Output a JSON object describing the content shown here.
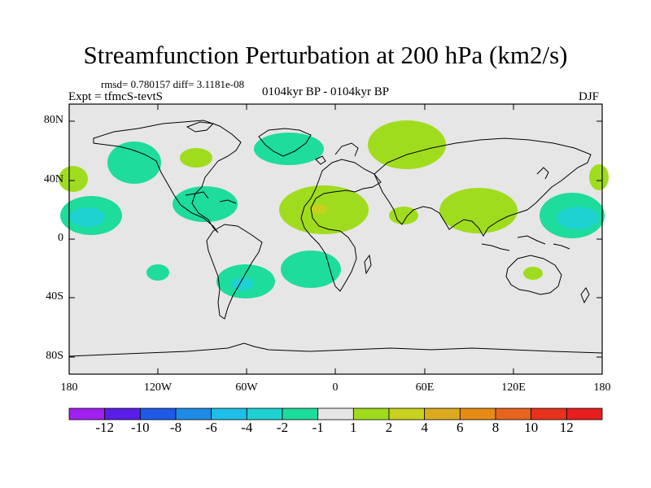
{
  "title": "Streamfunction Perturbation at 200 hPa (km2/s)",
  "stats": "rmsd= 0.780157 diff= 3.1181e-08",
  "experiment": "Expt = tfmcS-tevtS",
  "period": "0104kyr BP - 0104kyr BP",
  "season": "DJF",
  "lat_ticks": [
    "80N",
    "40N",
    "0",
    "40S",
    "80S"
  ],
  "lon_ticks": [
    "180",
    "120W",
    "60W",
    "0",
    "60E",
    "120E",
    "180"
  ],
  "colorbar": {
    "labels": [
      "-12",
      "-10",
      "-8",
      "-6",
      "-4",
      "-2",
      "-1",
      "1",
      "2",
      "4",
      "6",
      "8",
      "10",
      "12"
    ],
    "colors": [
      "#a020f0",
      "#5a1ee6",
      "#1e5ae6",
      "#1e8ce6",
      "#1ebee6",
      "#1ed2d2",
      "#1edc9b",
      "#e6e6e6",
      "#a0dc1e",
      "#c8d21e",
      "#dcaa1e",
      "#e68c14",
      "#e6641e",
      "#e6321e",
      "#e61e1e"
    ]
  },
  "colors": {
    "background": "#e6e6e6",
    "pos_1_2": "#a0dc1e",
    "pos_2_4": "#c8d21e",
    "neg_1_2": "#1edc9b",
    "neg_2_4": "#1ed2d2"
  }
}
